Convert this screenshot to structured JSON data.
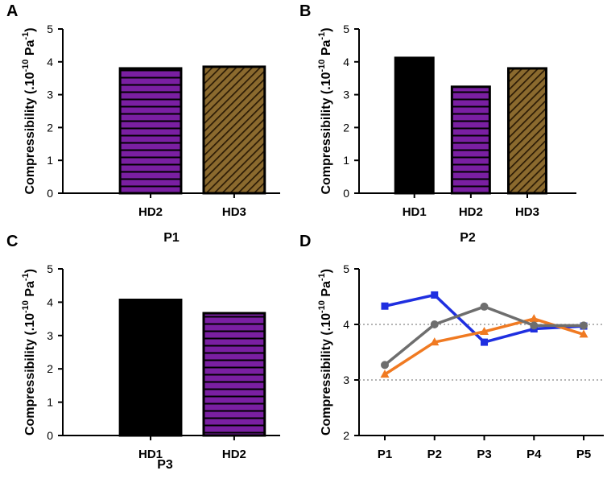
{
  "colors": {
    "black": "#000000",
    "purple": "#7a1fa2",
    "brown": "#8b6a2e",
    "blue": "#1f2fe0",
    "orange": "#f07a22",
    "gray": "#6e6e6e",
    "grid": "#888888"
  },
  "chart_data": [
    {
      "panel": "A",
      "type": "bar",
      "title": "",
      "xlabel": "P1",
      "ylabel": "Compressibility (.10^-10 Pa^-1)",
      "ylim": [
        0,
        5
      ],
      "yticks": [
        "0",
        "1",
        "2",
        "3",
        "4",
        "5"
      ],
      "categories": [
        "HD2",
        "HD3"
      ],
      "values": [
        3.8,
        3.85
      ],
      "fills": [
        "purple-horizontal-stripes",
        "brown-diagonal-hatch"
      ]
    },
    {
      "panel": "B",
      "type": "bar",
      "title": "",
      "xlabel": "P2",
      "ylabel": "Compressibility (.10^-10 Pa^-1)",
      "ylim": [
        0,
        5
      ],
      "yticks": [
        "0",
        "1",
        "2",
        "3",
        "4",
        "5"
      ],
      "categories": [
        "HD1",
        "HD2",
        "HD3"
      ],
      "values": [
        4.12,
        3.24,
        3.8
      ],
      "fills": [
        "solid-black",
        "purple-horizontal-stripes",
        "brown-diagonal-hatch"
      ]
    },
    {
      "panel": "C",
      "type": "bar",
      "title": "",
      "xlabel": "P3",
      "ylabel": "Compressibility (.10^-10 Pa^-1)",
      "ylim": [
        0,
        5
      ],
      "yticks": [
        "0",
        "1",
        "2",
        "3",
        "4",
        "5"
      ],
      "categories": [
        "HD1",
        "HD2"
      ],
      "values": [
        4.07,
        3.67
      ],
      "fills": [
        "solid-black",
        "purple-horizontal-stripes"
      ]
    },
    {
      "panel": "D",
      "type": "line",
      "title": "",
      "xlabel": "",
      "ylabel": "Compressibility (.10^-10 Pa^-1)",
      "ylim": [
        2,
        5
      ],
      "yticks": [
        "2",
        "3",
        "4",
        "5"
      ],
      "gridlines": [
        3,
        4
      ],
      "categories": [
        "P1",
        "P2",
        "P3",
        "P4",
        "P5"
      ],
      "series": [
        {
          "name": "blue",
          "color": "blue",
          "marker": "square",
          "values": [
            4.33,
            4.53,
            3.68,
            3.92,
            3.97
          ]
        },
        {
          "name": "orange",
          "color": "orange",
          "marker": "triangle",
          "values": [
            3.1,
            3.68,
            3.87,
            4.1,
            3.82
          ]
        },
        {
          "name": "gray",
          "color": "gray",
          "marker": "circle",
          "values": [
            3.27,
            4.0,
            4.32,
            3.98,
            3.98
          ]
        }
      ]
    }
  ],
  "ylabel_parts": {
    "main": "Compressibility (.10",
    "exp1": "-10",
    "mid": " Pa",
    "exp2": "-1",
    "end": ")"
  }
}
